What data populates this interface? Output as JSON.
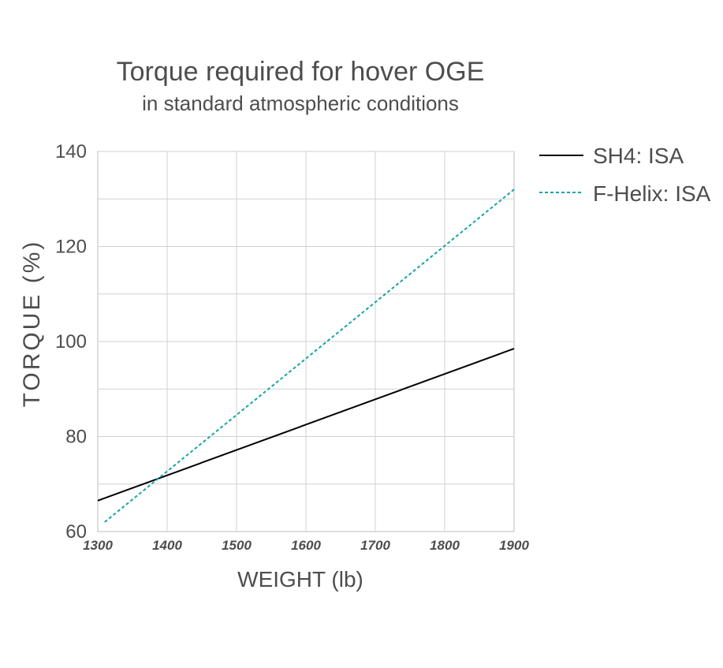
{
  "chart_data": {
    "type": "line",
    "title": "Torque required for hover OGE",
    "subtitle": "in standard atmospheric conditions",
    "xlabel": "WEIGHT  (lb)",
    "ylabel": "TORQUE  (%)",
    "xlim": [
      1300,
      1900
    ],
    "ylim": [
      60,
      140
    ],
    "xticks": [
      1300,
      1400,
      1500,
      1600,
      1700,
      1800,
      1900
    ],
    "yticks": [
      60,
      80,
      100,
      120,
      140
    ],
    "grid": true,
    "legend_position": "top-right",
    "series": [
      {
        "name": "SH4: ISA",
        "color": "#000000",
        "dash": "solid",
        "x": [
          1300,
          1900
        ],
        "y": [
          66.5,
          98.5
        ]
      },
      {
        "name": "F-Helix: ISA",
        "color": "#17a3a9",
        "dash": "dashed",
        "x": [
          1310,
          1900
        ],
        "y": [
          62,
          132
        ]
      }
    ]
  }
}
